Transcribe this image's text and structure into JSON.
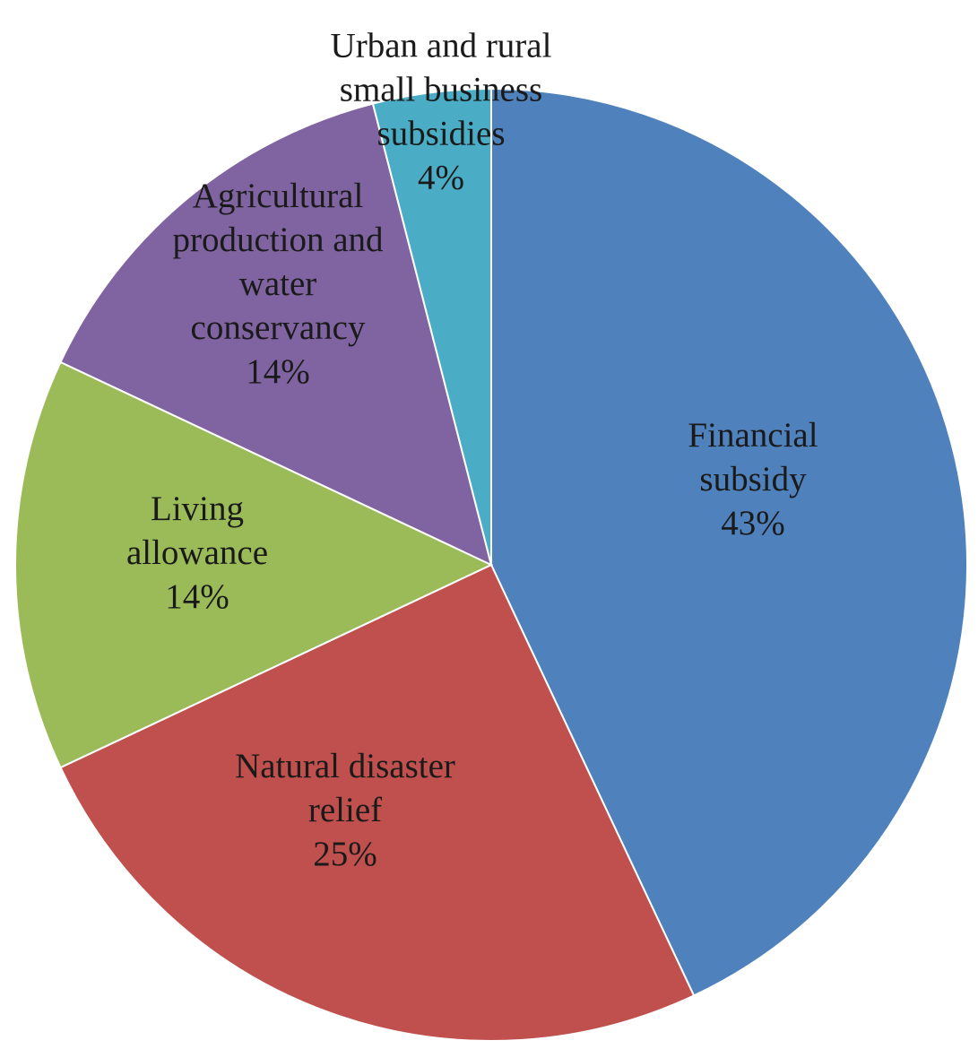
{
  "chart_data": {
    "type": "pie",
    "title": "",
    "slices": [
      {
        "label_lines": [
          "Financial",
          "subsidy"
        ],
        "percent_label": "43%",
        "value": 43,
        "color": "#4F81BD"
      },
      {
        "label_lines": [
          "Natural disaster",
          "relief"
        ],
        "percent_label": "25%",
        "value": 25,
        "color": "#C0504D"
      },
      {
        "label_lines": [
          "Living",
          "allowance"
        ],
        "percent_label": "14%",
        "value": 14,
        "color": "#9BBB59"
      },
      {
        "label_lines": [
          "Agricultural",
          "production and",
          "water",
          "conservancy"
        ],
        "percent_label": "14%",
        "value": 14,
        "color": "#8064A2"
      },
      {
        "label_lines": [
          "Urban and rural",
          "small business",
          "subsidies"
        ],
        "percent_label": "4%",
        "value": 4,
        "color": "#4BACC6"
      }
    ]
  }
}
